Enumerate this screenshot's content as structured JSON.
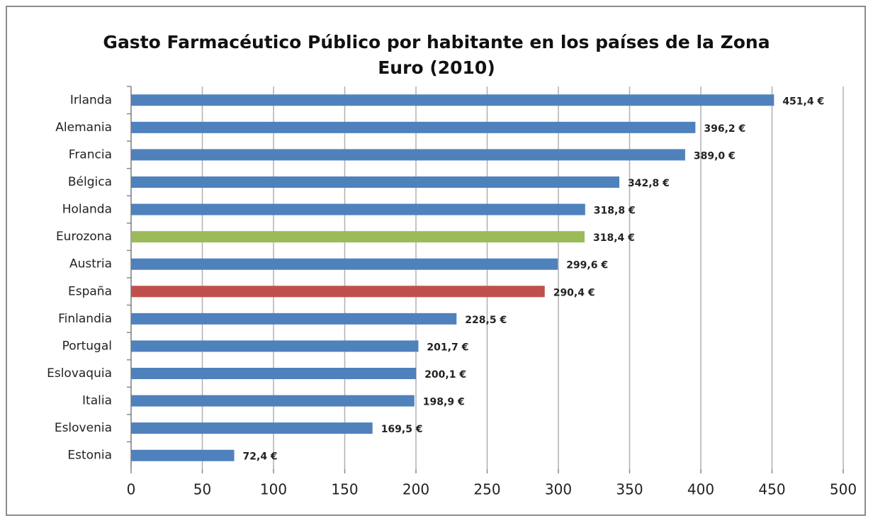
{
  "chart_data": {
    "type": "barh",
    "title": "Gasto Farmacéutico Público por habitante en los países de la Zona Euro (2010)",
    "categories": [
      "Irlanda",
      "Alemania",
      "Francia",
      "Bélgica",
      "Holanda",
      "Eurozona",
      "Austria",
      "España",
      "Finlandia",
      "Portugal",
      "Eslovaquia",
      "Italia",
      "Eslovenia",
      "Estonia"
    ],
    "values": [
      451.4,
      396.2,
      389.0,
      342.8,
      318.8,
      318.4,
      299.6,
      290.4,
      228.5,
      201.7,
      200.1,
      198.9,
      169.5,
      72.4
    ],
    "value_labels": [
      "451,4 €",
      "396,2 €",
      "389,0 €",
      "342,8 €",
      "318,8 €",
      "318,4 €",
      "299,6 €",
      "290,4 €",
      "228,5 €",
      "201,7 €",
      "200,1 €",
      "198,9 €",
      "169,5 €",
      "72,4 €"
    ],
    "colors": [
      "#4f81bd",
      "#4f81bd",
      "#4f81bd",
      "#4f81bd",
      "#4f81bd",
      "#9bbb59",
      "#4f81bd",
      "#c0504d",
      "#4f81bd",
      "#4f81bd",
      "#4f81bd",
      "#4f81bd",
      "#4f81bd",
      "#4f81bd"
    ],
    "xlim": [
      0,
      500
    ],
    "xticks": [
      0,
      50,
      100,
      150,
      200,
      250,
      300,
      350,
      400,
      450,
      500
    ],
    "grid": true
  }
}
